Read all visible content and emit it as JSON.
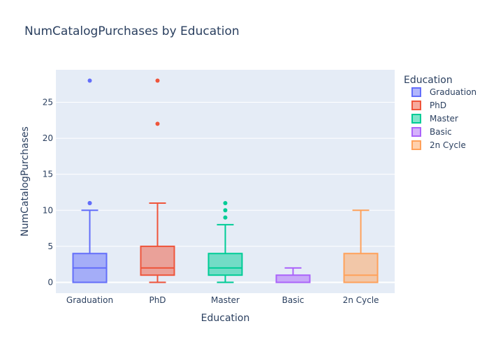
{
  "chart_data": {
    "type": "box",
    "title": "NumCatalogPurchases by Education",
    "xlabel": "Education",
    "ylabel": "NumCatalogPurchases",
    "ylim": [
      -1.5,
      29.5
    ],
    "yticks": [
      0,
      5,
      10,
      15,
      20,
      25
    ],
    "grid": true,
    "legend": {
      "title": "Education",
      "position": "right"
    },
    "categories": [
      "Graduation",
      "PhD",
      "Master",
      "Basic",
      "2n Cycle"
    ],
    "series": [
      {
        "name": "Graduation",
        "color": "#636efa",
        "min": 0,
        "q1": 0,
        "median": 2,
        "q3": 4,
        "max": 10,
        "outliers": [
          11,
          11,
          28
        ]
      },
      {
        "name": "PhD",
        "color": "#ef553b",
        "min": 0,
        "q1": 1,
        "median": 2,
        "q3": 5,
        "max": 11,
        "outliers": [
          22,
          28
        ]
      },
      {
        "name": "Master",
        "color": "#00cc96",
        "min": 0,
        "q1": 1,
        "median": 2,
        "q3": 4,
        "max": 8,
        "outliers": [
          9,
          10,
          11
        ]
      },
      {
        "name": "Basic",
        "color": "#ab63fa",
        "min": 0,
        "q1": 0,
        "median": 0,
        "q3": 1,
        "max": 2,
        "outliers": []
      },
      {
        "name": "2n Cycle",
        "color": "#ffa15a",
        "min": 0,
        "q1": 0,
        "median": 1,
        "q3": 4,
        "max": 10,
        "outliers": []
      }
    ]
  }
}
